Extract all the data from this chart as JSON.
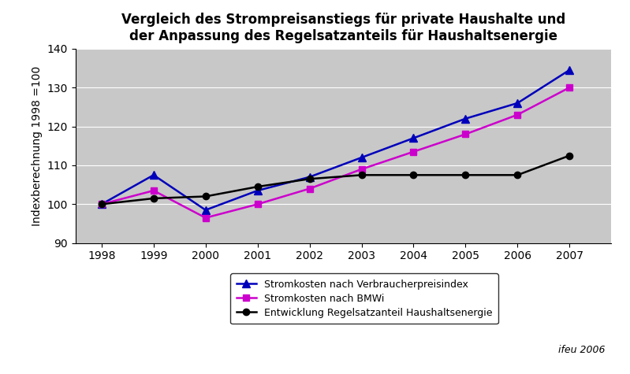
{
  "title_line1": "Vergleich des Strompreisanstiegs für private Haushalte und",
  "title_line2": "der Anpassung des Regelsatzanteils für Haushaltsenergie",
  "ylabel": "Indexberechnung 1998 =100",
  "years": [
    1998,
    1999,
    2000,
    2001,
    2002,
    2003,
    2004,
    2005,
    2006,
    2007
  ],
  "series1_label": "Stromkosten nach Verbraucherpreisindex",
  "series1_color": "#0000BB",
  "series1_values": [
    100,
    107.5,
    98.5,
    103.5,
    107,
    112,
    117,
    122,
    126,
    134.5
  ],
  "series2_label": "Stromkosten nach BMWi",
  "series2_color": "#CC00CC",
  "series2_values": [
    100,
    103.5,
    96.5,
    100,
    104,
    109,
    113.5,
    118,
    123,
    130
  ],
  "series3_label": "Entwicklung Regelsatzanteil Haushaltsenergie",
  "series3_color": "#000000",
  "series3_values": [
    100,
    101.5,
    102,
    104.5,
    106.5,
    107.5,
    107.5,
    107.5,
    107.5,
    112.5
  ],
  "ylim_min": 90,
  "ylim_max": 140,
  "yticks": [
    90,
    100,
    110,
    120,
    130,
    140
  ],
  "fig_bg_color": "#FFFFFF",
  "plot_bg_color": "#C8C8C8",
  "annotation": "ifeu 2006",
  "title_fontsize": 12,
  "axis_fontsize": 10,
  "legend_fontsize": 9
}
